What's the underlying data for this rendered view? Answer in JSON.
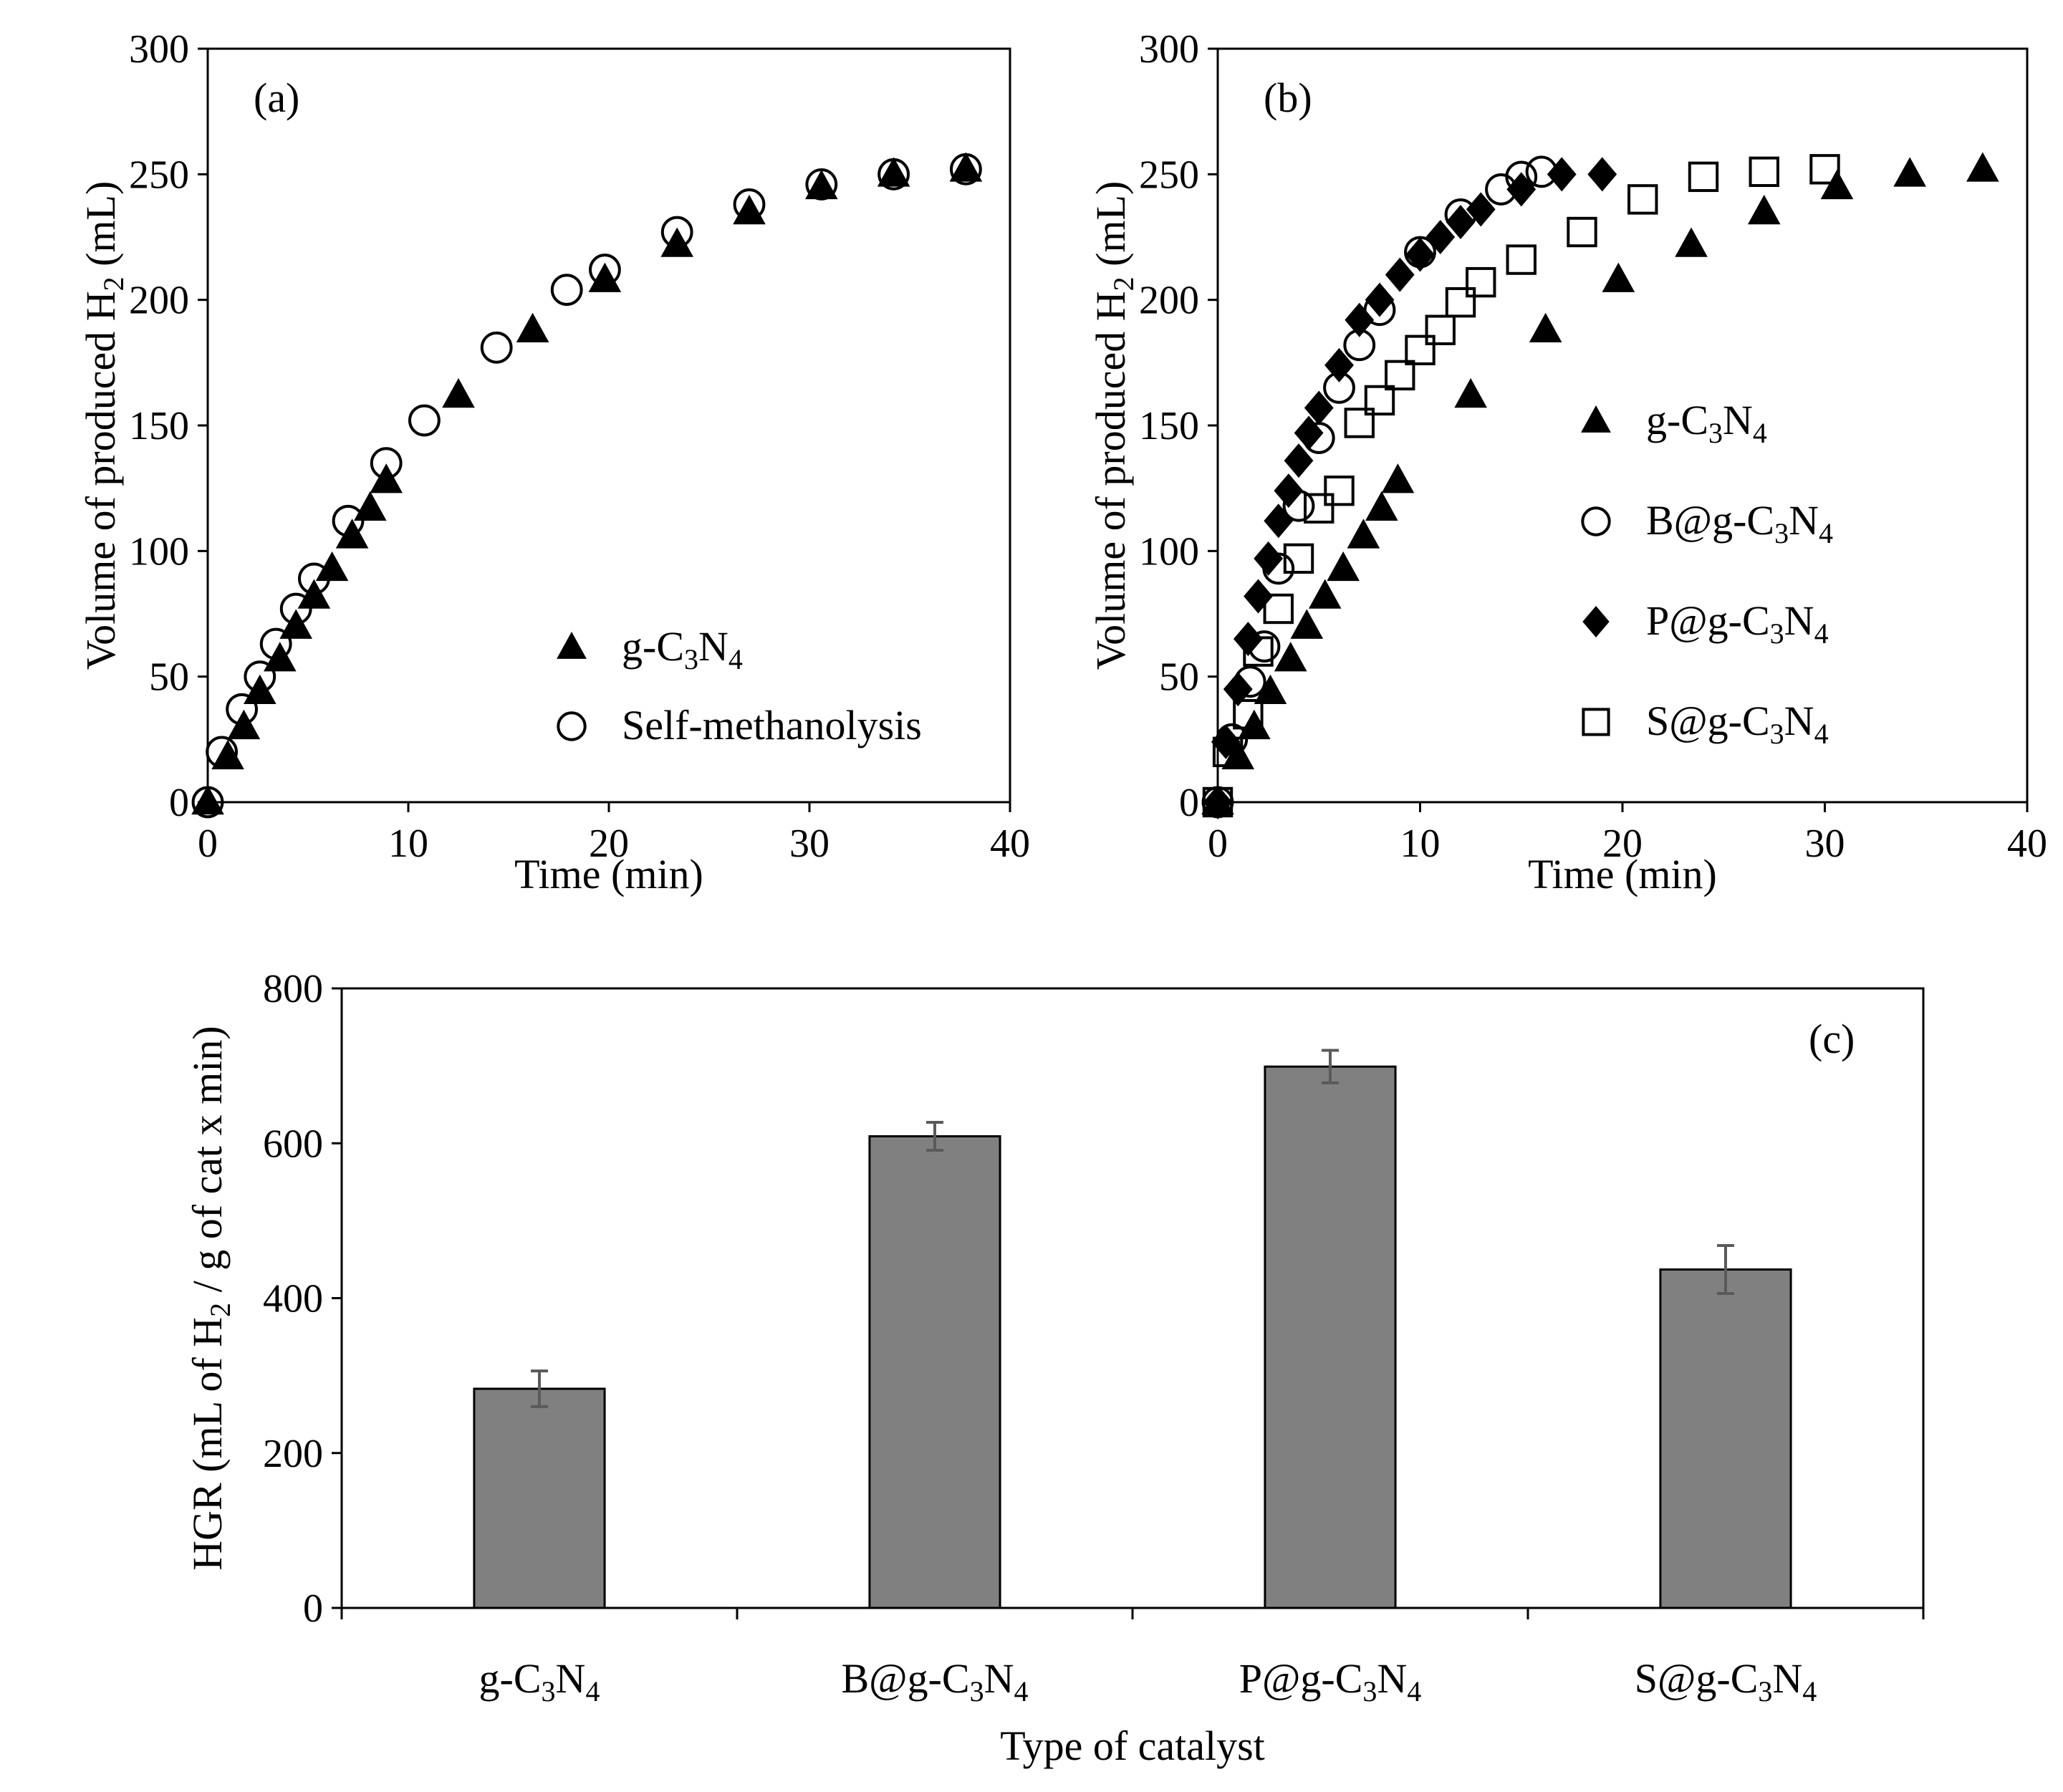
{
  "chart_data": [
    {
      "panel": "a",
      "type": "scatter",
      "panel_label": "(a)",
      "xlabel": "Time (min)",
      "ylabel": "Volume of produced H2 (mL)",
      "xlim": [
        0,
        40
      ],
      "ylim": [
        0,
        300
      ],
      "xticks": [
        0,
        10,
        20,
        30,
        40
      ],
      "yticks": [
        0,
        50,
        100,
        150,
        200,
        250,
        300
      ],
      "legend_position": "bottom-right",
      "series": [
        {
          "name": "g-C3N4",
          "marker": "triangle",
          "x": [
            0,
            1,
            1.8,
            2.6,
            3.6,
            4.4,
            5.3,
            6.2,
            7.2,
            8.1,
            8.9,
            12.5,
            16.2,
            19.8,
            23.4,
            27.0,
            30.6,
            34.2,
            37.8
          ],
          "y": [
            0,
            18,
            30,
            44,
            57,
            70,
            82,
            93,
            106,
            117,
            128,
            162,
            188,
            208,
            222,
            235,
            245,
            250,
            252
          ]
        },
        {
          "name": "Self-methanolysis",
          "marker": "circle",
          "x": [
            0,
            0.7,
            1.7,
            2.6,
            3.4,
            4.4,
            5.3,
            7.0,
            8.9,
            10.8,
            14.4,
            17.9,
            19.8,
            23.4,
            27.0,
            30.6,
            34.2,
            37.8
          ],
          "y": [
            0,
            20,
            37,
            50,
            63,
            77,
            89,
            112,
            135,
            152,
            181,
            204,
            212,
            227,
            238,
            246,
            250,
            252
          ]
        }
      ]
    },
    {
      "panel": "b",
      "type": "scatter",
      "panel_label": "(b)",
      "xlabel": "Time (min)",
      "ylabel": "Volume of produced H2 (mL)",
      "xlim": [
        0,
        40
      ],
      "ylim": [
        0,
        300
      ],
      "xticks": [
        0,
        10,
        20,
        30,
        40
      ],
      "yticks": [
        0,
        50,
        100,
        150,
        200,
        250,
        300
      ],
      "legend_position": "center-right",
      "series": [
        {
          "name": "g-C3N4",
          "marker": "triangle",
          "x": [
            0,
            1,
            1.8,
            2.6,
            3.6,
            4.4,
            5.3,
            6.2,
            7.2,
            8.1,
            8.9,
            12.5,
            16.2,
            19.8,
            23.4,
            27.0,
            30.6,
            34.2,
            37.8
          ],
          "y": [
            0,
            18,
            30,
            44,
            57,
            70,
            82,
            93,
            106,
            117,
            128,
            162,
            188,
            208,
            222,
            235,
            245,
            250,
            252
          ]
        },
        {
          "name": "B@g-C3N4",
          "marker": "circle",
          "x": [
            0,
            0.7,
            1.6,
            2.3,
            3.0,
            4.0,
            5.0,
            6.0,
            7.0,
            8.0,
            10.0,
            12.0,
            14.0,
            15.0,
            16.0
          ],
          "y": [
            0,
            25,
            48,
            62,
            93,
            118,
            145,
            165,
            182,
            196,
            219,
            234,
            244,
            249,
            251
          ]
        },
        {
          "name": "P@g-C3N4",
          "marker": "diamond",
          "x": [
            0,
            0.4,
            1.0,
            1.5,
            2.0,
            2.5,
            3.0,
            3.5,
            4.0,
            4.5,
            5.0,
            6.0,
            7.0,
            8.0,
            9.0,
            10.0,
            11.0,
            12.0,
            13.0,
            15.0,
            17.0,
            19.0
          ],
          "y": [
            0,
            24,
            45,
            65,
            82,
            97,
            112,
            124,
            136,
            147,
            157,
            174,
            192,
            200,
            210,
            218,
            225,
            231,
            236,
            244,
            250,
            250
          ]
        },
        {
          "name": "S@g-C3N4",
          "marker": "square",
          "x": [
            0,
            0.5,
            1.5,
            2.0,
            3.0,
            4.0,
            5.0,
            6.0,
            7.0,
            8.0,
            9.0,
            10.0,
            11.0,
            12.0,
            13.0,
            15.0,
            18.0,
            21.0,
            24.0,
            27.0,
            30.0
          ],
          "y": [
            0,
            20,
            35,
            60,
            77,
            97,
            117,
            124,
            151,
            160,
            170,
            180,
            188,
            199,
            207,
            216,
            227,
            240,
            249,
            251,
            252
          ]
        }
      ]
    },
    {
      "panel": "c",
      "type": "bar",
      "panel_label": "(c)",
      "xlabel": "Type of catalyst",
      "ylabel": "HGR (mL of H2 / g of cat x min)",
      "ylim": [
        0,
        800
      ],
      "yticks": [
        0,
        200,
        400,
        600,
        800
      ],
      "categories": [
        "g-C3N4",
        "B@g-C3N4",
        "P@g-C3N4",
        "S@g-C3N4"
      ],
      "values": [
        283,
        609,
        699,
        437
      ],
      "errors": [
        23,
        18,
        21,
        31
      ],
      "bar_color": "#808080"
    }
  ]
}
